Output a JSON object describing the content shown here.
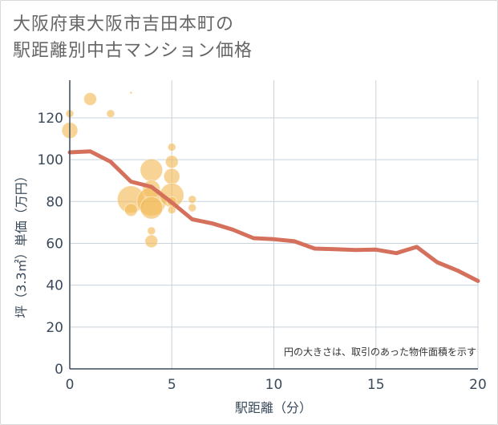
{
  "title": {
    "line1": "大阪府東大阪市吉田本町の",
    "line2": "駅距離別中古マンション価格"
  },
  "colors": {
    "line": "#d4705c",
    "bubble": "#f2b955",
    "grid": "#c8d3dc",
    "axis": "#3a4a5a",
    "text": "#666666"
  },
  "chart_data": {
    "type": "scatter",
    "xlabel": "駅距離（分）",
    "ylabel": "坪（3.3㎡）単価（万円）",
    "xlim": [
      0,
      20
    ],
    "ylim": [
      0,
      138
    ],
    "x_ticks": [
      "0",
      "5",
      "10",
      "15",
      "20"
    ],
    "y_ticks": [
      "0",
      "20",
      "40",
      "60",
      "80",
      "100",
      "120"
    ],
    "x_tick_values": [
      0,
      5,
      10,
      15,
      20
    ],
    "y_tick_values": [
      0,
      20,
      40,
      60,
      80,
      100,
      120
    ],
    "grid": true,
    "note": "円の大きさは、取引のあった物件面積を示す",
    "series": [
      {
        "kind": "line",
        "points": [
          [
            0,
            103.5
          ],
          [
            1,
            104
          ],
          [
            2,
            99
          ],
          [
            3,
            89.5
          ],
          [
            4,
            87
          ],
          [
            5,
            79.5
          ],
          [
            6,
            71.5
          ],
          [
            7,
            69.5
          ],
          [
            8,
            66.5
          ],
          [
            9,
            62.5
          ],
          [
            10,
            62
          ],
          [
            11,
            61
          ],
          [
            12,
            57.5
          ],
          [
            13,
            57.2
          ],
          [
            14,
            56.8
          ],
          [
            15,
            57
          ],
          [
            16,
            55.3
          ],
          [
            17,
            58.3
          ],
          [
            18,
            51
          ],
          [
            19,
            47
          ],
          [
            20,
            42
          ]
        ]
      },
      {
        "kind": "bubble",
        "points": [
          {
            "x": 0,
            "y": 122,
            "s": 5
          },
          {
            "x": 0,
            "y": 114,
            "s": 10
          },
          {
            "x": 1,
            "y": 129,
            "s": 8
          },
          {
            "x": 2,
            "y": 122,
            "s": 5
          },
          {
            "x": 3,
            "y": 132,
            "s": 1.5
          },
          {
            "x": 3,
            "y": 81,
            "s": 17
          },
          {
            "x": 3,
            "y": 76,
            "s": 8
          },
          {
            "x": 4,
            "y": 95,
            "s": 14
          },
          {
            "x": 4,
            "y": 86,
            "s": 11
          },
          {
            "x": 4,
            "y": 80,
            "s": 18
          },
          {
            "x": 4,
            "y": 77,
            "s": 14
          },
          {
            "x": 4,
            "y": 66,
            "s": 5
          },
          {
            "x": 4,
            "y": 61,
            "s": 8
          },
          {
            "x": 5,
            "y": 106,
            "s": 5
          },
          {
            "x": 5,
            "y": 99,
            "s": 8
          },
          {
            "x": 5,
            "y": 92,
            "s": 10
          },
          {
            "x": 5,
            "y": 83,
            "s": 15
          },
          {
            "x": 5,
            "y": 80,
            "s": 6
          },
          {
            "x": 5,
            "y": 76,
            "s": 5
          },
          {
            "x": 6,
            "y": 81,
            "s": 5
          },
          {
            "x": 6,
            "y": 77,
            "s": 5
          }
        ]
      }
    ]
  }
}
